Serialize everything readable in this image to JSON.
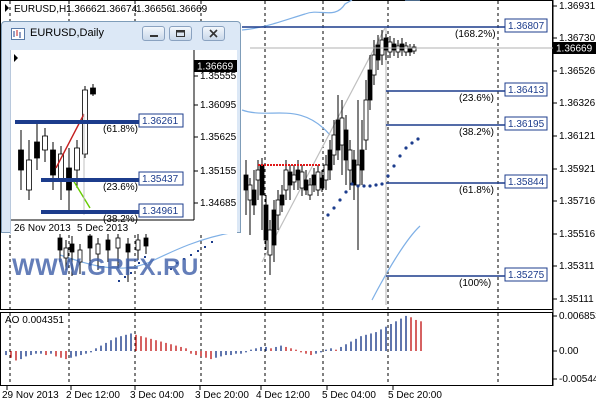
{
  "main_chart": {
    "symbol_label": "EURUSD,H1",
    "ohlc": [
      "1.36662",
      "1.36674",
      "1.36656",
      "1.36669"
    ],
    "price_ticks": [
      "1.36931",
      "1.36730",
      "1.36526",
      "1.36326",
      "1.36121",
      "1.35921",
      "1.35716",
      "1.35516",
      "1.35311",
      "1.35111"
    ],
    "current_price": "1.36669",
    "watermark": "WWW.GRFX.RU",
    "fib_levels": [
      {
        "pct": "(168.2%)",
        "price": "1.36807"
      },
      {
        "pct": "(23.6%)",
        "price": "1.36413"
      },
      {
        "pct": "(38.2%)",
        "price": "1.36195"
      },
      {
        "pct": "(61.8%)",
        "price": "1.35844"
      },
      {
        "pct": "(100%)",
        "price": "1.35275"
      }
    ],
    "time_labels": [
      "29 Nov 2013",
      "2 Dec 12:00",
      "3 Dec 04:00",
      "3 Dec 20:00",
      "4 Dec 12:00",
      "5 Dec 04:00",
      "5 Dec 20:00"
    ],
    "colors": {
      "level_line": "#1c3c8c",
      "up_bar": "#1c3c8c",
      "down_bar": "#c41e1e",
      "band": "#7fb0e6",
      "sar": "#1c3c8c",
      "red_sar": "#e01818"
    }
  },
  "indicator": {
    "label": "AO 0.004351",
    "ticks": [
      "0.006853",
      "0.00",
      "-0.005441"
    ]
  },
  "inset": {
    "title": "EURUSD,Daily",
    "current_price": "1.36669",
    "price_ticks": [
      "1.36669",
      "1.35555",
      "1.36095",
      "1.35625",
      "1.35155",
      "1.34685"
    ],
    "levels": [
      {
        "pct": "(61.8%)",
        "price": "1.36261"
      },
      {
        "pct": "(23.6%)",
        "price": "1.35437"
      },
      {
        "pct": "(38.2%)",
        "price": "1.34961"
      }
    ],
    "time_labels": [
      "26 Nov 2013",
      "5 Dec 2013"
    ],
    "buttons": {
      "minimize": "minimize",
      "restore": "restore",
      "close": "close"
    }
  }
}
